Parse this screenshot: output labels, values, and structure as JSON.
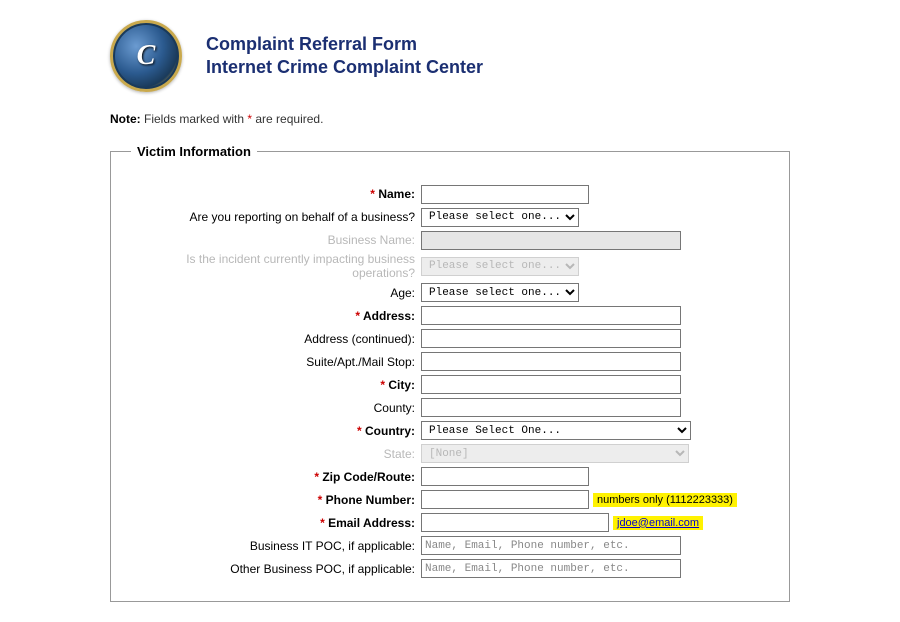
{
  "header": {
    "title_line1": "Complaint Referral Form",
    "title_line2": "Internet Crime Complaint Center",
    "seal_text": "C"
  },
  "note": {
    "prefix": "Note:",
    "text_before": " Fields marked with  ",
    "asterisk": "*",
    "text_after": " are required."
  },
  "section": {
    "legend": "Victim Information",
    "fields": {
      "name": {
        "label": "Name:",
        "required": true,
        "value": ""
      },
      "on_behalf": {
        "label": "Are you reporting on behalf of a business?",
        "selected": "Please select one..."
      },
      "business_name": {
        "label": "Business Name:",
        "value": ""
      },
      "impacting": {
        "label": "Is the incident currently impacting business operations?",
        "selected": "Please select one..."
      },
      "age": {
        "label": "Age:",
        "selected": "Please select one..."
      },
      "address": {
        "label": "Address:",
        "required": true,
        "value": ""
      },
      "address2": {
        "label": "Address (continued):",
        "value": ""
      },
      "suite": {
        "label": "Suite/Apt./Mail Stop:",
        "value": ""
      },
      "city": {
        "label": "City:",
        "required": true,
        "value": ""
      },
      "county": {
        "label": "County:",
        "value": ""
      },
      "country": {
        "label": "Country:",
        "required": true,
        "selected": "Please Select One..."
      },
      "state": {
        "label": "State:",
        "selected": "[None]"
      },
      "zip": {
        "label": "Zip Code/Route:",
        "required": true,
        "value": ""
      },
      "phone": {
        "label": "Phone Number:",
        "required": true,
        "value": "",
        "hint": "numbers only (1112223333)"
      },
      "email": {
        "label": "Email Address:",
        "required": true,
        "value": "",
        "hint": "jdoe@email.com"
      },
      "it_poc": {
        "label": "Business IT POC, if applicable:",
        "placeholder": "Name, Email, Phone number, etc."
      },
      "other_poc": {
        "label": "Other Business POC, if applicable:",
        "placeholder": "Name, Email, Phone number, etc."
      }
    }
  },
  "colors": {
    "title": "#1b2f72",
    "required": "#cc0000",
    "highlight": "#fff200",
    "border": "#999999",
    "disabled_text": "#b8b8b8"
  }
}
